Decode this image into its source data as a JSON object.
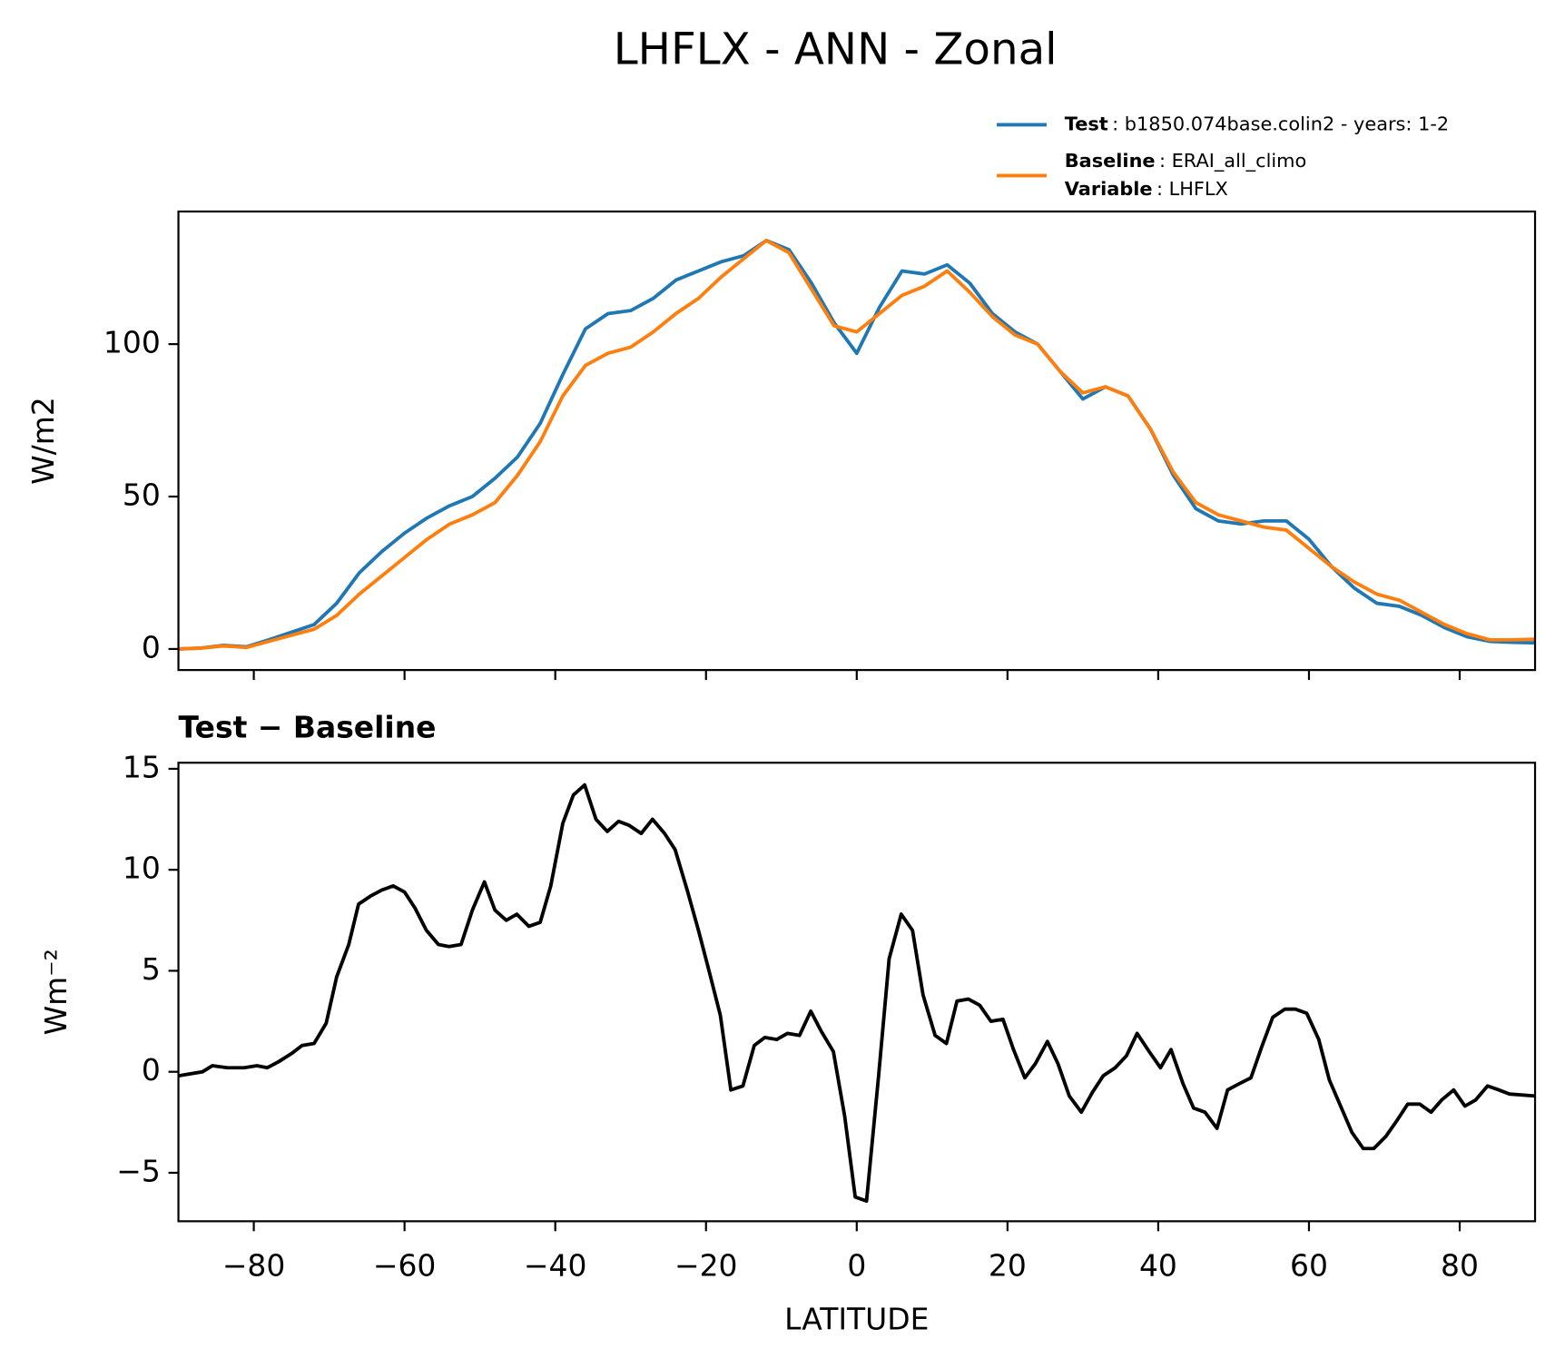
{
  "title": "LHFLX - ANN - Zonal",
  "chart_data": [
    {
      "type": "line",
      "ylabel": "W/m2",
      "x": [
        -90,
        -87,
        -84,
        -81,
        -78,
        -75,
        -72,
        -69,
        -66,
        -63,
        -60,
        -57,
        -54,
        -51,
        -48,
        -45,
        -42,
        -39,
        -36,
        -33,
        -30,
        -27,
        -24,
        -21,
        -18,
        -15,
        -12,
        -9,
        -6,
        -3,
        0,
        3,
        6,
        9,
        12,
        15,
        18,
        21,
        24,
        27,
        30,
        33,
        36,
        39,
        42,
        45,
        48,
        51,
        54,
        57,
        60,
        63,
        66,
        69,
        72,
        75,
        78,
        81,
        84,
        87,
        90
      ],
      "series": [
        {
          "name": "Test",
          "description": ": b1850.074base.colin2 - years: 1-2",
          "color": "#1f77b4",
          "values": [
            0,
            0.3,
            1.2,
            0.7,
            3,
            5.5,
            8,
            15,
            25,
            32,
            38,
            43,
            47,
            50,
            56,
            63,
            74,
            90,
            105,
            110,
            111,
            115,
            121,
            124,
            127,
            129,
            134,
            131,
            120,
            107,
            97,
            112,
            124,
            123,
            126,
            120,
            110,
            104,
            100,
            91,
            82,
            86,
            83,
            72,
            57,
            46,
            42,
            41,
            42,
            42,
            36,
            27,
            20,
            15,
            14,
            11,
            7,
            4,
            2.5,
            2.2,
            2
          ]
        },
        {
          "name": "Baseline",
          "description": ": ERAI_all_climo",
          "color": "#ff7f0e",
          "values": [
            0,
            0.3,
            1.0,
            0.5,
            2.5,
            4.5,
            6.5,
            11,
            18,
            24,
            30,
            36,
            41,
            44,
            48,
            57,
            68,
            83,
            93,
            97,
            99,
            104,
            110,
            115,
            122,
            128,
            134,
            130,
            118,
            106,
            104,
            110,
            116,
            119,
            124,
            117,
            109,
            103,
            100,
            91,
            84,
            86,
            83,
            72,
            58,
            48,
            44,
            42,
            40,
            39,
            33,
            27,
            22,
            18,
            16,
            12,
            8,
            5,
            3,
            3,
            3.2
          ]
        }
      ],
      "legend_extra": {
        "name": "Variable",
        "description": ": LHFLX"
      },
      "xlim": [
        -90,
        90
      ],
      "xticks": [
        -80,
        -60,
        -40,
        -20,
        0,
        20,
        40,
        60,
        80
      ],
      "ylim": [
        -6.9,
        143.5
      ],
      "yticks": [
        0,
        50,
        100
      ]
    },
    {
      "type": "line",
      "title": "Test − Baseline",
      "ylabel": "Wm⁻²",
      "xlabel": "LATITUDE",
      "x": [
        -90,
        -86.8,
        -85.5,
        -83.5,
        -81.3,
        -79.6,
        -78.2,
        -76.7,
        -75,
        -73.6,
        -72,
        -70.4,
        -69,
        -67.4,
        -66.1,
        -64.5,
        -63,
        -61.5,
        -60,
        -58.6,
        -57.1,
        -55.5,
        -54.1,
        -52.5,
        -51,
        -49.4,
        -48,
        -46.5,
        -45.1,
        -43.5,
        -42,
        -40.6,
        -39,
        -37.6,
        -36.1,
        -34.6,
        -33.1,
        -31.6,
        -30.2,
        -28.6,
        -27.1,
        -25.5,
        -24.1,
        -22.5,
        -21,
        -19.6,
        -18.1,
        -16.7,
        -15.1,
        -13.6,
        -12.2,
        -10.6,
        -9.2,
        -7.6,
        -6.1,
        -4.7,
        -3.1,
        -1.6,
        -0.2,
        1.3,
        2.9,
        4.3,
        5.9,
        7.4,
        8.8,
        10.4,
        11.9,
        13.3,
        14.8,
        16.3,
        17.8,
        19.4,
        20.8,
        22.3,
        23.7,
        25.3,
        26.7,
        28.2,
        29.8,
        31.3,
        32.7,
        34.3,
        35.8,
        37.2,
        38.8,
        40.3,
        41.7,
        43.3,
        44.7,
        46.2,
        47.8,
        49.2,
        50.7,
        52.3,
        53.7,
        55.2,
        56.8,
        58.2,
        59.7,
        61.3,
        62.7,
        64.2,
        65.7,
        67.2,
        68.6,
        70.2,
        71.7,
        73.1,
        74.7,
        76.2,
        77.6,
        79.2,
        80.7,
        82.1,
        83.7,
        85.2,
        86.6,
        90
      ],
      "series": [
        {
          "color": "#000000",
          "values": [
            -0.2,
            0,
            0.3,
            0.2,
            0.2,
            0.3,
            0.2,
            0.5,
            0.9,
            1.3,
            1.4,
            2.4,
            4.7,
            6.3,
            8.3,
            8.7,
            9.0,
            9.2,
            8.9,
            8.1,
            7.0,
            6.3,
            6.2,
            6.3,
            8.0,
            9.4,
            8.0,
            7.5,
            7.8,
            7.2,
            7.4,
            9.2,
            12.3,
            13.7,
            14.2,
            12.5,
            11.9,
            12.4,
            12.2,
            11.8,
            12.5,
            11.8,
            11.0,
            9.0,
            7.0,
            5.0,
            2.8,
            -0.9,
            -0.7,
            1.3,
            1.7,
            1.6,
            1.9,
            1.8,
            3.0,
            2.0,
            1.0,
            -2.2,
            -6.2,
            -6.4,
            -0.2,
            5.6,
            7.8,
            7.0,
            3.8,
            1.8,
            1.4,
            3.5,
            3.6,
            3.3,
            2.5,
            2.6,
            1.1,
            -0.3,
            0.4,
            1.5,
            0.4,
            -1.2,
            -2.0,
            -1.0,
            -0.2,
            0.2,
            0.8,
            1.9,
            1.0,
            0.2,
            1.1,
            -0.6,
            -1.8,
            -2.0,
            -2.8,
            -0.9,
            -0.6,
            -0.3,
            1.2,
            2.7,
            3.1,
            3.1,
            2.9,
            1.6,
            -0.4,
            -1.7,
            -3.0,
            -3.8,
            -3.8,
            -3.2,
            -2.4,
            -1.6,
            -1.6,
            -2.0,
            -1.4,
            -0.9,
            -1.7,
            -1.4,
            -0.7,
            -0.9,
            -1.1,
            -1.2
          ]
        }
      ],
      "xlim": [
        -90,
        90
      ],
      "xticks": [
        {
          "value": -80,
          "label": "−80"
        },
        {
          "value": -60,
          "label": "−60"
        },
        {
          "value": -40,
          "label": "−40"
        },
        {
          "value": -20,
          "label": "−20"
        },
        0,
        20,
        40,
        60,
        80
      ],
      "ylim": [
        -7.4,
        15.3
      ],
      "yticks": [
        {
          "value": -5,
          "label": "−5"
        },
        0,
        5,
        10,
        15
      ]
    }
  ]
}
